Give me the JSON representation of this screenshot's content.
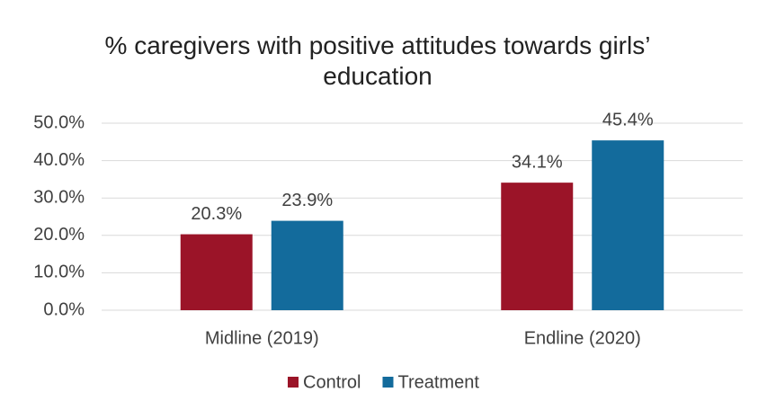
{
  "chart_data": {
    "type": "bar",
    "title": "% caregivers with positive attitudes towards girls’ education",
    "categories": [
      "Midline (2019)",
      "Endline (2020)"
    ],
    "series": [
      {
        "name": "Control",
        "color": "#9b1428",
        "values": [
          20.3,
          34.1
        ],
        "value_labels": [
          "20.3%",
          "34.1%"
        ]
      },
      {
        "name": "Treatment",
        "color": "#136b9c",
        "values": [
          23.9,
          45.4
        ],
        "value_labels": [
          "23.9%",
          "45.4%"
        ]
      }
    ],
    "ylim": [
      0,
      50
    ],
    "yticks": [
      {
        "value": 0,
        "label": "0.0%"
      },
      {
        "value": 10,
        "label": "10.0%"
      },
      {
        "value": 20,
        "label": "20.0%"
      },
      {
        "value": 30,
        "label": "30.0%"
      },
      {
        "value": 40,
        "label": "40.0%"
      },
      {
        "value": 50,
        "label": "50.0%"
      }
    ],
    "grid": true,
    "legend": "bottom"
  }
}
